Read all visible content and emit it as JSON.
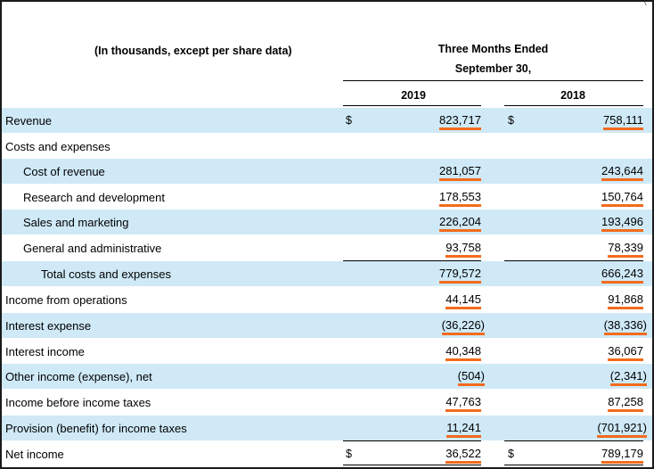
{
  "header": {
    "units_note": "(In thousands, except per share data)",
    "period_line1": "Three Months Ended",
    "period_line2": "September 30,",
    "year_2019": "2019",
    "year_2018": "2018"
  },
  "currency_symbol": "$",
  "accent_color": "#f26b1d",
  "shade_color": "#cfe9f7",
  "rows": [
    {
      "label": "Revenue",
      "v2019": "823,717",
      "v2018": "758,111"
    },
    {
      "label": "Costs and expenses",
      "v2019": "",
      "v2018": ""
    },
    {
      "label": "Cost of revenue",
      "v2019": "281,057",
      "v2018": "243,644"
    },
    {
      "label": "Research and development",
      "v2019": "178,553",
      "v2018": "150,764"
    },
    {
      "label": "Sales and marketing",
      "v2019": "226,204",
      "v2018": "193,496"
    },
    {
      "label": "General and administrative",
      "v2019": "93,758",
      "v2018": "78,339"
    },
    {
      "label": "Total costs and expenses",
      "v2019": "779,572",
      "v2018": "666,243"
    },
    {
      "label": "Income from operations",
      "v2019": "44,145",
      "v2018": "91,868"
    },
    {
      "label": "Interest expense",
      "v2019": "(36,226)",
      "v2018": "(38,336)"
    },
    {
      "label": "Interest income",
      "v2019": "40,348",
      "v2018": "36,067"
    },
    {
      "label": "Other income (expense), net",
      "v2019": "(504)",
      "v2018": "(2,341)"
    },
    {
      "label": "Income before income taxes",
      "v2019": "47,763",
      "v2018": "87,258"
    },
    {
      "label": "Provision (benefit) for income taxes",
      "v2019": "11,241",
      "v2018": "(701,921)"
    },
    {
      "label": "Net income",
      "v2019": "36,522",
      "v2018": "789,179"
    }
  ]
}
